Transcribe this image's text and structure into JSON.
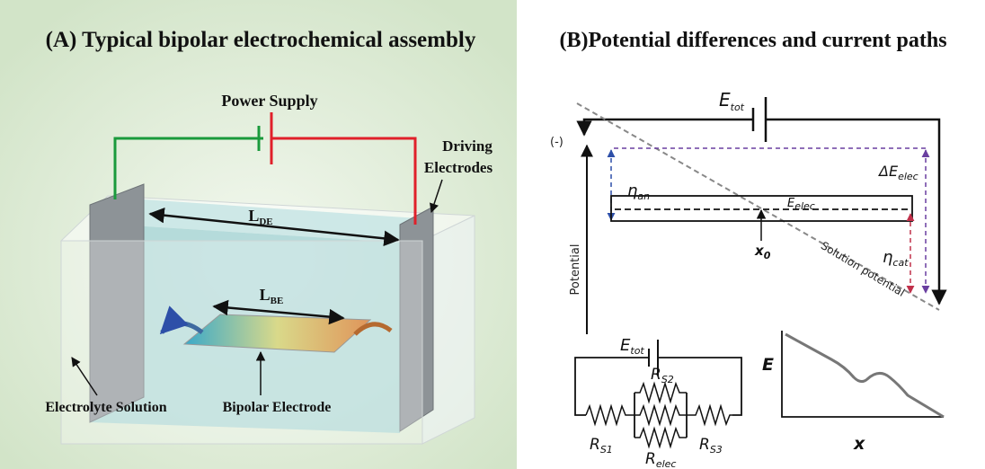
{
  "panel_a": {
    "title": "(A) Typical bipolar electrochemical assembly",
    "power_supply": "Power Supply",
    "driving_electrodes": [
      "Driving",
      "Electrodes"
    ],
    "l_de": {
      "main": "L",
      "sub": "DE"
    },
    "l_be": {
      "main": "L",
      "sub": "BE"
    },
    "electrolyte_solution": "Electrolyte Solution",
    "bipolar_electrode": "Bipolar Electrode"
  },
  "panel_b": {
    "title": "(B)Potential differences and current paths",
    "e_tot": {
      "main": "E",
      "sub": "tot"
    },
    "negative": "(-)",
    "delta_e_elec": {
      "main": "ΔE",
      "sub": "elec"
    },
    "eta_an": {
      "main": "η",
      "sub": "an"
    },
    "e_elec": {
      "main": "E",
      "sub": "elec"
    },
    "x0": {
      "main": "x",
      "sub": "0"
    },
    "eta_cat": {
      "main": "η",
      "sub": "cat"
    },
    "potential_axis": "Potential",
    "solution_potential": "Solution potential",
    "circuit": {
      "e_tot": {
        "main": "E",
        "sub": "tot"
      },
      "r_s1": {
        "main": "R",
        "sub": "S1"
      },
      "r_s2": {
        "main": "R",
        "sub": "S2"
      },
      "r_s3": {
        "main": "R",
        "sub": "S3"
      },
      "r_elec": {
        "main": "R",
        "sub": "elec"
      }
    },
    "graph": {
      "y_label": "E",
      "x_label": "x"
    }
  }
}
